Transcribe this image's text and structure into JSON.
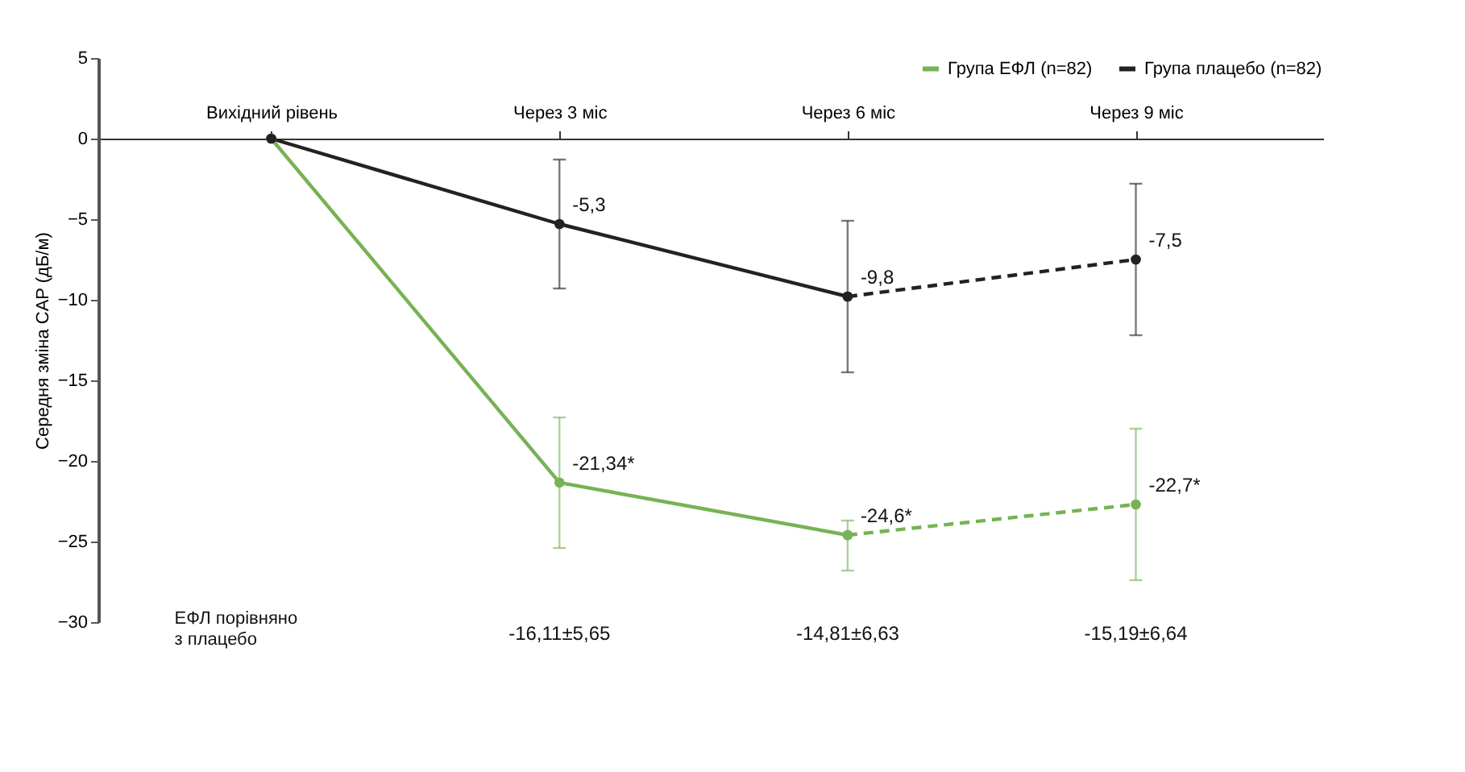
{
  "chart_data": {
    "type": "line",
    "categories": [
      "Вихідний рівень",
      "Через 3 міс",
      "Через 6 міс",
      "Через 9 міс"
    ],
    "ylabel": "Середня зміна CAP (дБ/м)",
    "ylim": [
      -30,
      5
    ],
    "yticks": [
      -30,
      -25,
      -20,
      -15,
      -10,
      -5,
      0,
      5
    ],
    "grid": false,
    "legend": "top right",
    "marker": "circle",
    "series": [
      {
        "name": "Група ЕФЛ (n=82)",
        "color": "#77b255",
        "line_style": "solid",
        "values": [
          0,
          -21.34,
          -24.6,
          null
        ],
        "errors": [
          null,
          [
            -25.4,
            -17.3
          ],
          [
            -26.8,
            -23.7
          ],
          null
        ],
        "value_labels": [
          null,
          "-21,34*",
          "-24,6*",
          null
        ]
      },
      {
        "name": "Група плацебо (n=82)",
        "color": "#222222",
        "line_style": "solid",
        "values": [
          0,
          -5.3,
          -9.8,
          null
        ],
        "errors": [
          null,
          [
            -9.3,
            -1.3
          ],
          [
            -14.5,
            -5.1
          ],
          null
        ],
        "value_labels": [
          null,
          "-5,3",
          "-9,8",
          null
        ]
      },
      {
        "color": "#77b255",
        "line_style": "dashed",
        "values": [
          null,
          null,
          -24.6,
          -22.7
        ],
        "errors": [
          null,
          null,
          null,
          [
            -27.4,
            -18.0
          ]
        ],
        "value_labels": [
          null,
          null,
          null,
          "-22,7*"
        ]
      },
      {
        "color": "#222222",
        "line_style": "dashed",
        "values": [
          null,
          null,
          -9.8,
          -7.5
        ],
        "errors": [
          null,
          null,
          null,
          [
            -12.2,
            -2.8
          ]
        ],
        "value_labels": [
          null,
          null,
          null,
          "-7,5"
        ]
      }
    ],
    "annotations": [
      "ЕФЛ порівняно\nз плацебо",
      "-16,11±5,65",
      "-14,81±6,63",
      "-15,19±6,64"
    ]
  }
}
